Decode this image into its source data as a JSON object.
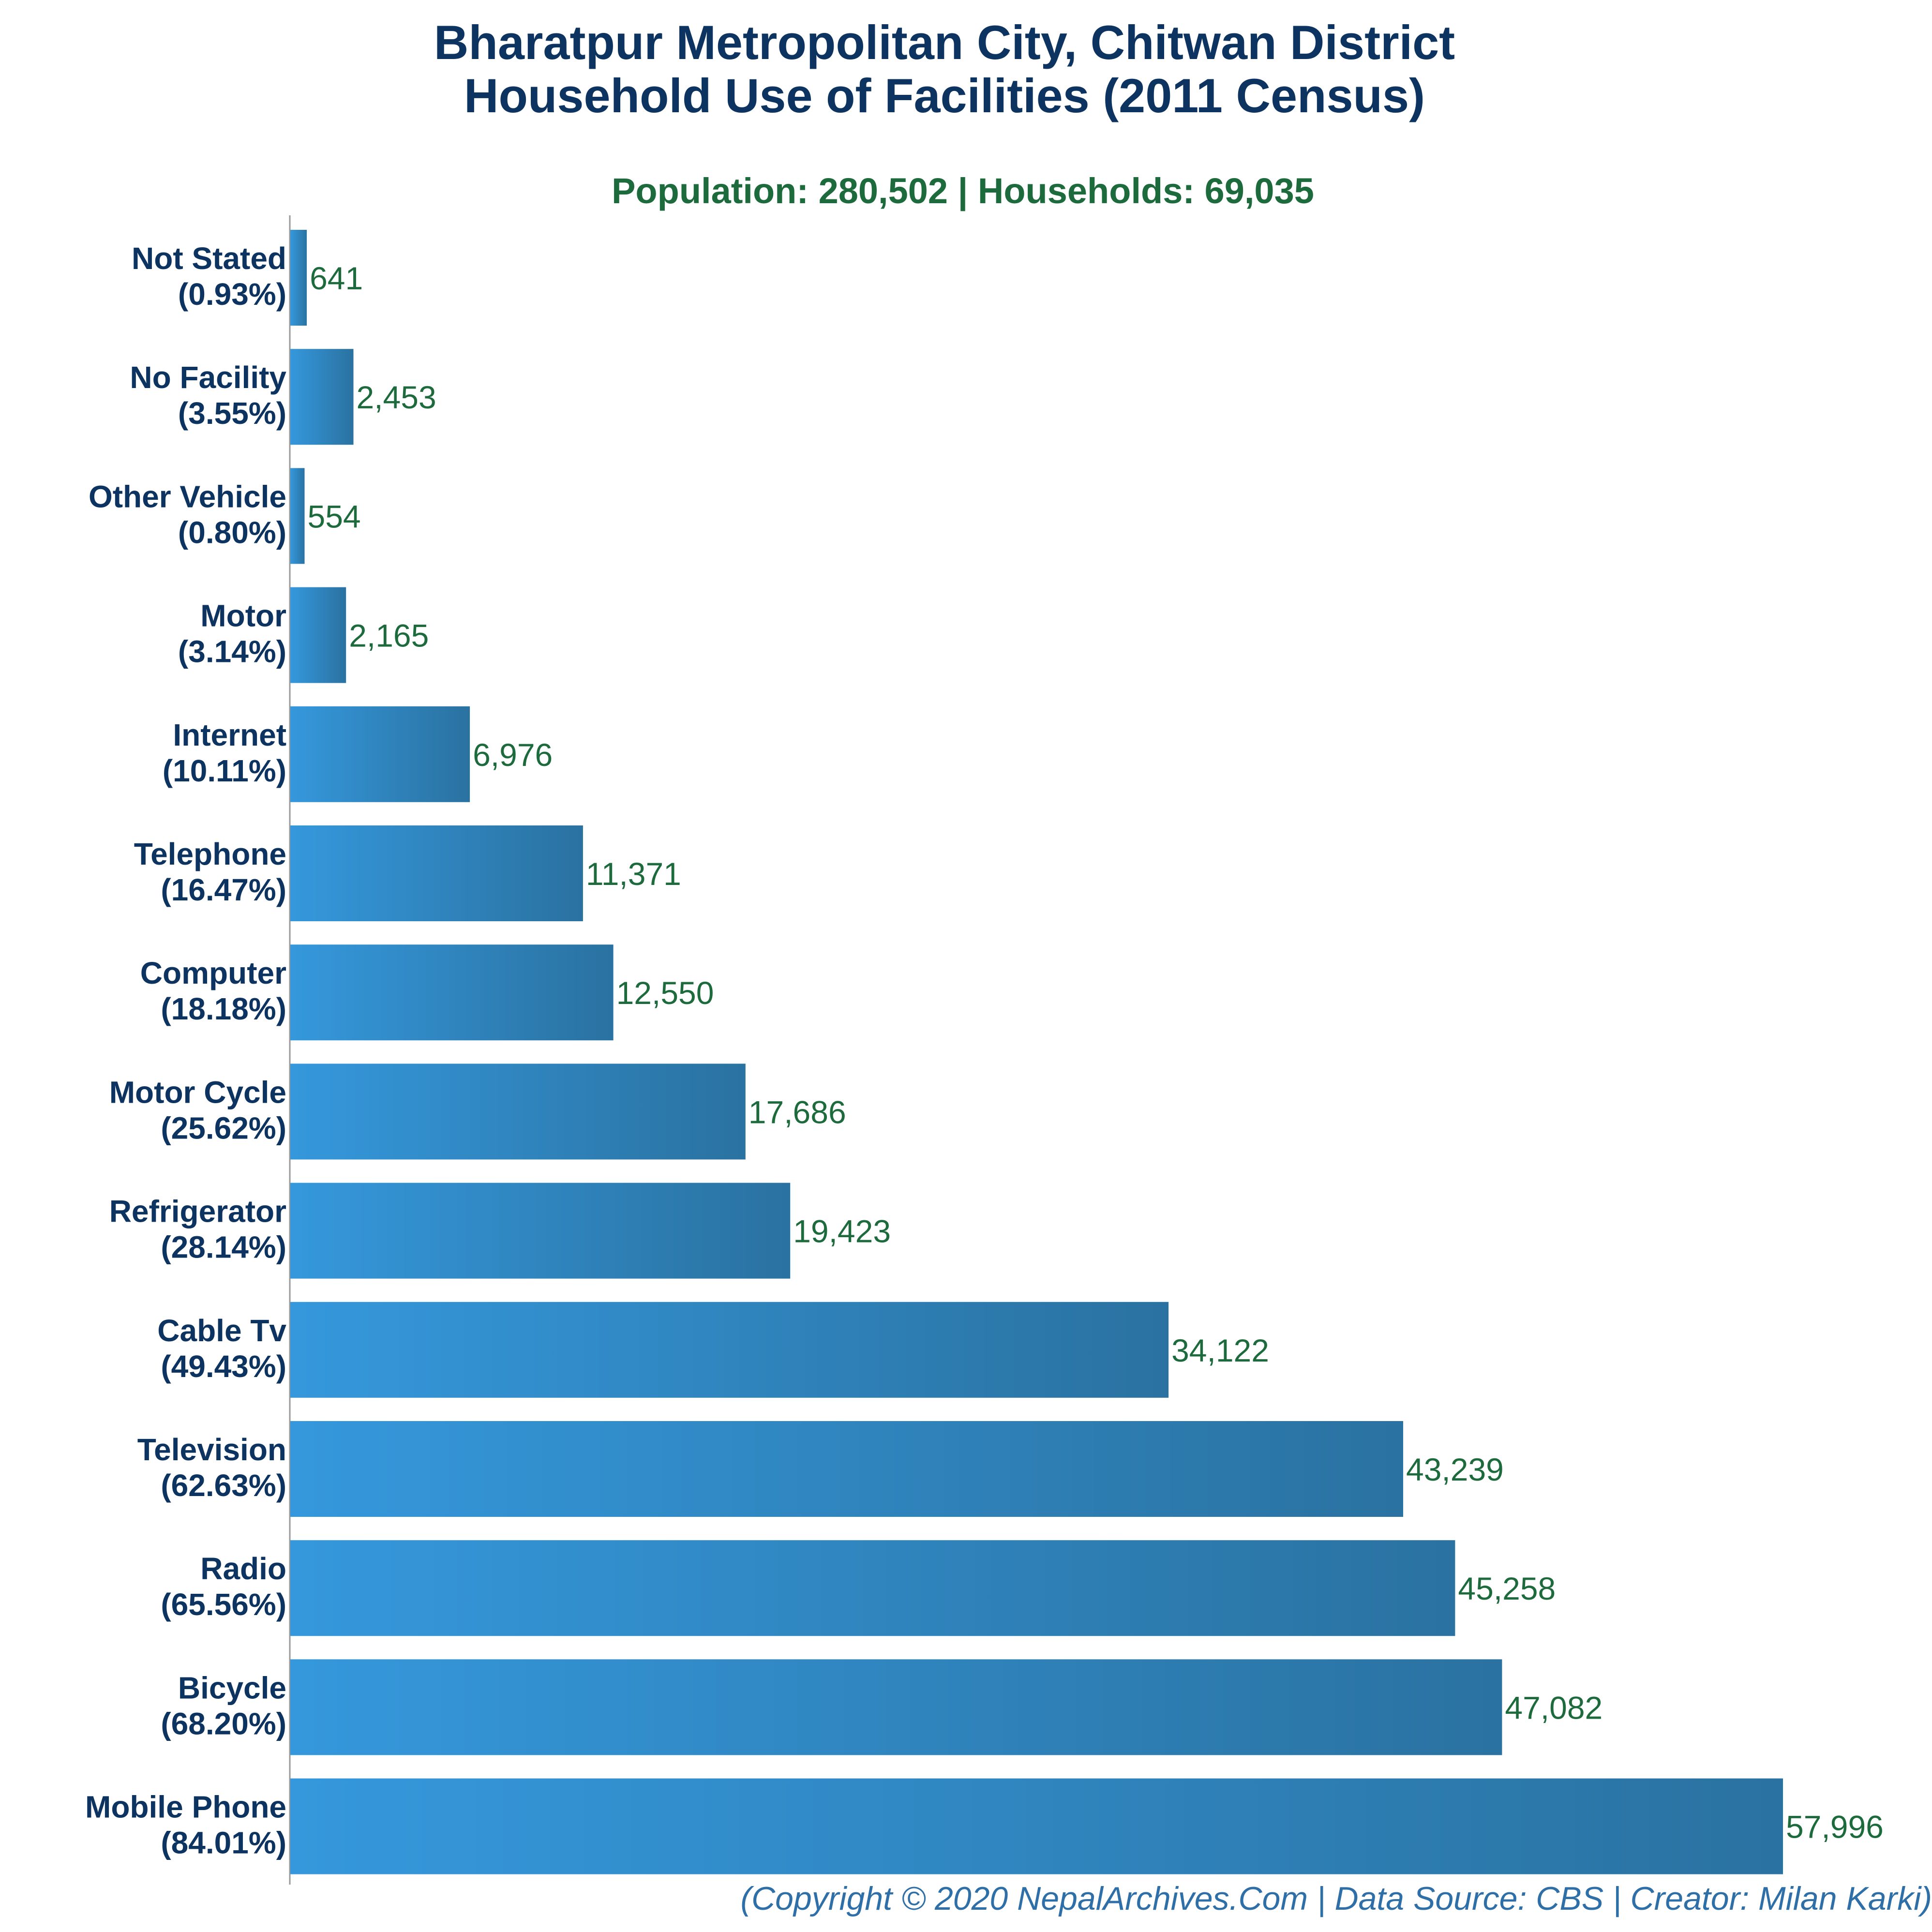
{
  "chart_data": {
    "type": "bar",
    "orientation": "horizontal",
    "title_lines": [
      "Bharatpur Metropolitan City, Chitwan District",
      "Household Use of Facilities (2011 Census)"
    ],
    "subtitle": "Population: 280,502 | Households: 69,035",
    "categories": [
      "Not Stated",
      "No Facility",
      "Other Vehicle",
      "Motor",
      "Internet",
      "Telephone",
      "Computer",
      "Motor Cycle",
      "Refrigerator",
      "Cable Tv",
      "Television",
      "Radio",
      "Bicycle",
      "Mobile Phone"
    ],
    "percent_labels": [
      "(0.93%)",
      "(3.55%)",
      "(0.80%)",
      "(3.14%)",
      "(10.11%)",
      "(16.47%)",
      "(18.18%)",
      "(25.62%)",
      "(28.14%)",
      "(49.43%)",
      "(62.63%)",
      "(65.56%)",
      "(68.20%)",
      "(84.01%)"
    ],
    "values": [
      641,
      2453,
      554,
      2165,
      6976,
      11371,
      12550,
      17686,
      19423,
      34122,
      43239,
      45258,
      47082,
      57996
    ],
    "value_labels": [
      "641",
      "2,453",
      "554",
      "2,165",
      "6,976",
      "11,371",
      "12,550",
      "17,686",
      "19,423",
      "34,122",
      "43,239",
      "45,258",
      "47,082",
      "57,996"
    ],
    "xlabel": "",
    "ylabel": "",
    "xlim": [
      0,
      57996
    ],
    "grid": false,
    "legend": "none",
    "bar_color_start": "#3598dc",
    "bar_color_end": "#2a72a1",
    "title_color": "#0d3461",
    "subtitle_color": "#1d6b3d",
    "value_color": "#1d6b3d",
    "footer": "(Copyright © 2020 NepalArchives.Com | Data Source: CBS | Creator: Milan Karki)"
  }
}
